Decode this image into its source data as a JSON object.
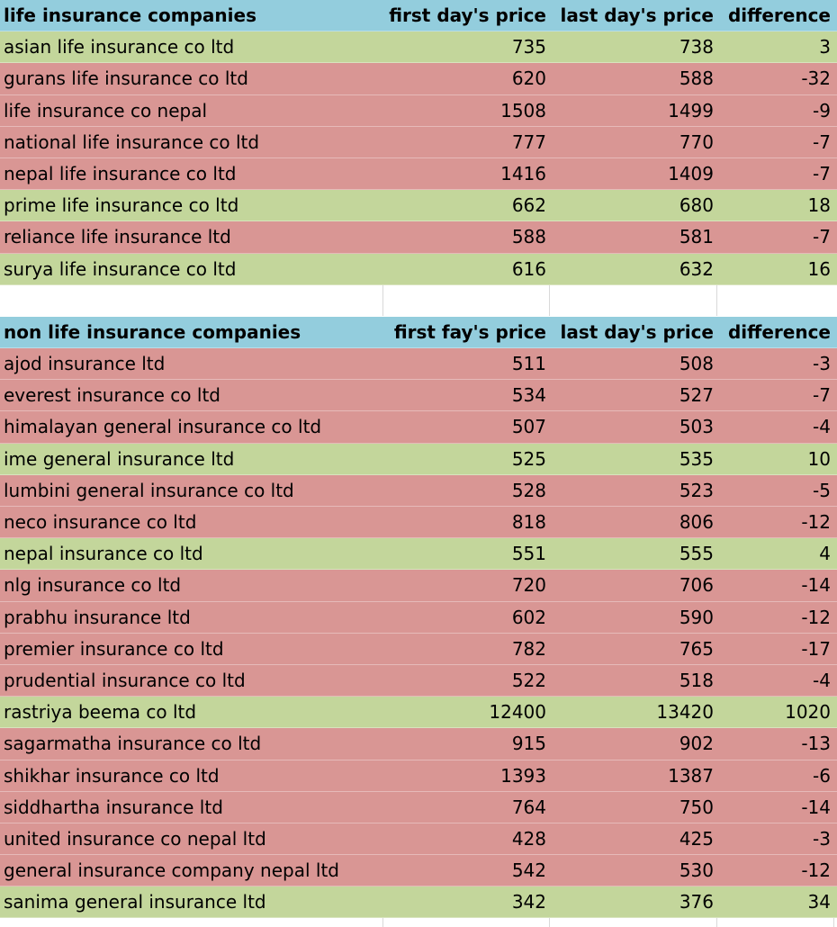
{
  "life": {
    "header": [
      "life insurance companies",
      "first day's price",
      "last day's price",
      "difference"
    ],
    "rows": [
      {
        "name": "asian life insurance co ltd",
        "first": "735",
        "last": "738",
        "diff": "3",
        "status": "pos"
      },
      {
        "name": "gurans life insurance co ltd",
        "first": "620",
        "last": "588",
        "diff": "-32",
        "status": "neg"
      },
      {
        "name": "life insurance co nepal",
        "first": "1508",
        "last": "1499",
        "diff": "-9",
        "status": "neg"
      },
      {
        "name": "national life insurance co ltd",
        "first": "777",
        "last": "770",
        "diff": "-7",
        "status": "neg"
      },
      {
        "name": "nepal life insurance co ltd",
        "first": "1416",
        "last": "1409",
        "diff": "-7",
        "status": "neg"
      },
      {
        "name": "prime life insurance co ltd",
        "first": "662",
        "last": "680",
        "diff": "18",
        "status": "pos"
      },
      {
        "name": "reliance life insurance ltd",
        "first": "588",
        "last": "581",
        "diff": "-7",
        "status": "neg"
      },
      {
        "name": "surya life insurance co ltd",
        "first": "616",
        "last": "632",
        "diff": "16",
        "status": "pos"
      }
    ]
  },
  "nonlife": {
    "header": [
      "non life insurance companies",
      "first fay's price",
      "last day's price",
      "difference"
    ],
    "rows": [
      {
        "name": "ajod insurance ltd",
        "first": "511",
        "last": "508",
        "diff": "-3",
        "status": "neg"
      },
      {
        "name": "everest insurance co ltd",
        "first": "534",
        "last": "527",
        "diff": "-7",
        "status": "neg"
      },
      {
        "name": "himalayan general insurance co ltd",
        "first": "507",
        "last": "503",
        "diff": "-4",
        "status": "neg"
      },
      {
        "name": "ime general insurance ltd",
        "first": "525",
        "last": "535",
        "diff": "10",
        "status": "pos"
      },
      {
        "name": "lumbini general insurance co ltd",
        "first": "528",
        "last": "523",
        "diff": "-5",
        "status": "neg"
      },
      {
        "name": "neco insurance co ltd",
        "first": "818",
        "last": "806",
        "diff": "-12",
        "status": "neg"
      },
      {
        "name": "nepal insurance co ltd",
        "first": "551",
        "last": "555",
        "diff": "4",
        "status": "pos"
      },
      {
        "name": "nlg insurance co ltd",
        "first": "720",
        "last": "706",
        "diff": "-14",
        "status": "neg"
      },
      {
        "name": "prabhu insurance ltd",
        "first": "602",
        "last": "590",
        "diff": "-12",
        "status": "neg"
      },
      {
        "name": "premier insurance co ltd",
        "first": "782",
        "last": "765",
        "diff": "-17",
        "status": "neg"
      },
      {
        "name": "prudential insurance co ltd",
        "first": "522",
        "last": "518",
        "diff": "-4",
        "status": "neg"
      },
      {
        "name": "rastriya beema co ltd",
        "first": "12400",
        "last": "13420",
        "diff": "1020",
        "status": "pos"
      },
      {
        "name": "sagarmatha insurance co ltd",
        "first": "915",
        "last": "902",
        "diff": "-13",
        "status": "neg"
      },
      {
        "name": "shikhar insurance co ltd",
        "first": "1393",
        "last": "1387",
        "diff": "-6",
        "status": "neg"
      },
      {
        "name": "siddhartha insurance ltd",
        "first": "764",
        "last": "750",
        "diff": "-14",
        "status": "neg"
      },
      {
        "name": "united insurance co nepal ltd",
        "first": "428",
        "last": "425",
        "diff": "-3",
        "status": "neg"
      },
      {
        "name": "general insurance company nepal ltd",
        "first": "542",
        "last": "530",
        "diff": "-12",
        "status": "neg"
      },
      {
        "name": "sanima general insurance ltd",
        "first": "342",
        "last": "376",
        "diff": "34",
        "status": "pos"
      }
    ]
  },
  "colors": {
    "header": "#93cddd",
    "positive": "#c3d69b",
    "negative": "#d99694"
  }
}
